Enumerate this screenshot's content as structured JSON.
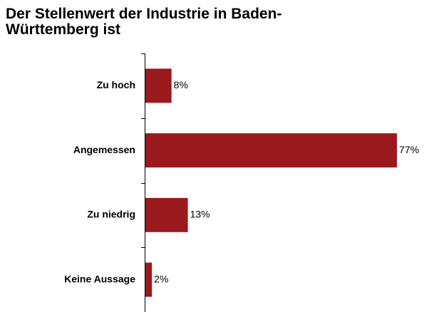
{
  "chart_data": {
    "type": "hbar",
    "title": [
      "Der Stellenwert der Industrie in Baden-",
      "Württemberg ist"
    ],
    "categories": [
      "Zu hoch",
      "Angemessen",
      "Zu niedrig",
      "Keine Aussage"
    ],
    "values": [
      8,
      77,
      13,
      2
    ],
    "value_labels": [
      "8%",
      "77%",
      "13%",
      "2%"
    ],
    "color": "#9b1a1d"
  }
}
